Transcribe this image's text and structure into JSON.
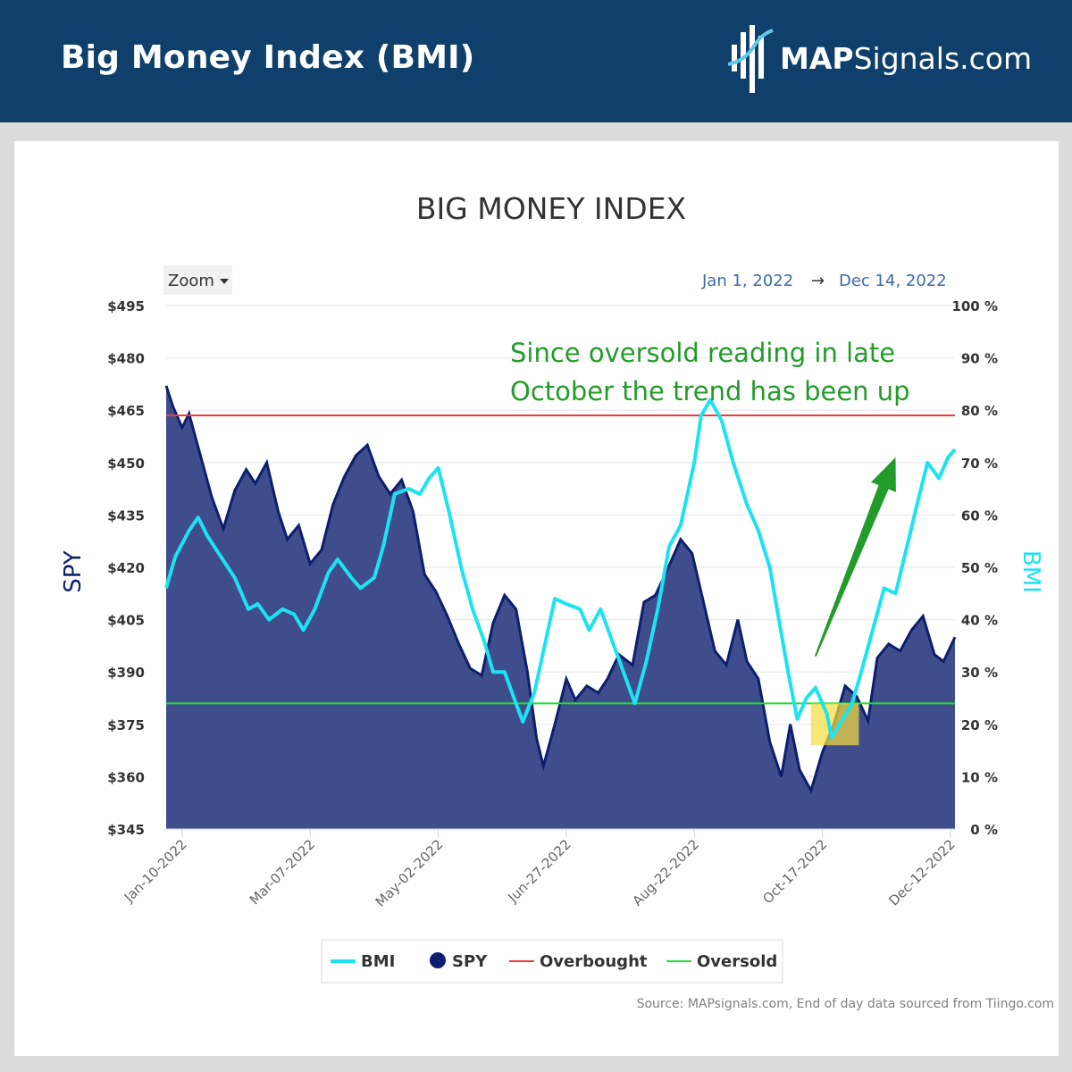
{
  "header": {
    "title": "Big Money Index (BMI)",
    "logo_text_bold": "MAP",
    "logo_text_rest": "Signals.com"
  },
  "chart_controls": {
    "zoom_label": "Zoom",
    "range_from": "Jan 1, 2022",
    "range_arrow": "→",
    "range_to": "Dec 14, 2022"
  },
  "source_note": "Source: MAPsignals.com, End of day data sourced from Tiingo.com",
  "colors": {
    "header_bg": "#0f3f6b",
    "bmi": "#1de3f0",
    "spy_fill": "#3f4d8d",
    "spy_line": "#0c1f6e",
    "overbought": "#e83b3b",
    "oversold": "#22dd33",
    "annotation": "#239b2a",
    "highlight": "#f5dd3c"
  },
  "chart_data": {
    "type": "line",
    "title": "BIG MONEY INDEX",
    "y_left_label": "SPY",
    "y_right_label": "BMI",
    "y_left_range": [
      345,
      495
    ],
    "y_left_ticks": [
      "$495",
      "$480",
      "$465",
      "$450",
      "$435",
      "$420",
      "$405",
      "$390",
      "$375",
      "$360",
      "$345"
    ],
    "y_right_range": [
      0,
      100
    ],
    "y_right_ticks": [
      "100 %",
      "90 %",
      "80 %",
      "70 %",
      "60 %",
      "50 %",
      "40 %",
      "30 %",
      "20 %",
      "10 %",
      "0 %"
    ],
    "x_ticks": [
      "Jan-10-2022",
      "Mar-07-2022",
      "May-02-2022",
      "Jun-27-2022",
      "Aug-22-2022",
      "Oct-17-2022",
      "Dec-12-2022"
    ],
    "x_range": [
      "2022-01-03",
      "2022-12-14"
    ],
    "legend": [
      {
        "name": "BMI",
        "symbol": "line"
      },
      {
        "name": "SPY",
        "symbol": "dot"
      },
      {
        "name": "Overbought",
        "symbol": "line"
      },
      {
        "name": "Oversold",
        "symbol": "line"
      }
    ],
    "legend_position": "bottom-center",
    "overbought_level": 79,
    "oversold_level": 24,
    "annotation": {
      "lines": [
        "Since oversold reading in late",
        "October the trend has been up"
      ],
      "arrow_from": [
        "2022-10-14",
        33
      ],
      "arrow_to": [
        "2022-11-18",
        71
      ]
    },
    "highlight_box": {
      "x": [
        "2022-10-12",
        "2022-11-02"
      ],
      "y": [
        16,
        24
      ]
    },
    "series": [
      {
        "name": "BMI",
        "axis": "right",
        "points": [
          [
            "2022-01-03",
            46
          ],
          [
            "2022-01-07",
            52
          ],
          [
            "2022-01-13",
            57
          ],
          [
            "2022-01-17",
            59.5
          ],
          [
            "2022-01-21",
            56
          ],
          [
            "2022-01-27",
            52
          ],
          [
            "2022-02-02",
            48
          ],
          [
            "2022-02-08",
            42
          ],
          [
            "2022-02-12",
            43
          ],
          [
            "2022-02-17",
            40
          ],
          [
            "2022-02-23",
            42
          ],
          [
            "2022-02-28",
            41
          ],
          [
            "2022-03-04",
            38
          ],
          [
            "2022-03-09",
            42
          ],
          [
            "2022-03-15",
            49
          ],
          [
            "2022-03-19",
            51.5
          ],
          [
            "2022-03-25",
            48
          ],
          [
            "2022-03-29",
            46
          ],
          [
            "2022-04-04",
            48
          ],
          [
            "2022-04-08",
            54
          ],
          [
            "2022-04-13",
            64
          ],
          [
            "2022-04-19",
            65
          ],
          [
            "2022-04-24",
            64
          ],
          [
            "2022-04-28",
            67
          ],
          [
            "2022-05-02",
            69
          ],
          [
            "2022-05-07",
            60
          ],
          [
            "2022-05-12",
            50
          ],
          [
            "2022-05-17",
            42
          ],
          [
            "2022-05-22",
            36
          ],
          [
            "2022-05-26",
            30
          ],
          [
            "2022-05-31",
            30
          ],
          [
            "2022-06-05",
            24
          ],
          [
            "2022-06-08",
            20.5
          ],
          [
            "2022-06-13",
            26
          ],
          [
            "2022-06-18",
            36
          ],
          [
            "2022-06-22",
            44
          ],
          [
            "2022-06-27",
            43
          ],
          [
            "2022-07-03",
            42
          ],
          [
            "2022-07-07",
            38
          ],
          [
            "2022-07-12",
            42
          ],
          [
            "2022-07-17",
            36
          ],
          [
            "2022-07-22",
            30
          ],
          [
            "2022-07-27",
            24
          ],
          [
            "2022-08-01",
            32
          ],
          [
            "2022-08-06",
            42
          ],
          [
            "2022-08-11",
            54
          ],
          [
            "2022-08-16",
            58
          ],
          [
            "2022-08-22",
            70
          ],
          [
            "2022-08-25",
            79
          ],
          [
            "2022-08-29",
            82
          ],
          [
            "2022-09-03",
            78
          ],
          [
            "2022-09-08",
            70
          ],
          [
            "2022-09-14",
            62
          ],
          [
            "2022-09-19",
            57
          ],
          [
            "2022-09-24",
            50
          ],
          [
            "2022-09-28",
            40
          ],
          [
            "2022-10-02",
            30
          ],
          [
            "2022-10-06",
            21
          ],
          [
            "2022-10-10",
            25
          ],
          [
            "2022-10-14",
            27
          ],
          [
            "2022-10-19",
            22
          ],
          [
            "2022-10-21",
            17.5
          ],
          [
            "2022-10-26",
            21
          ],
          [
            "2022-10-30",
            24
          ],
          [
            "2022-11-03",
            30
          ],
          [
            "2022-11-08",
            38
          ],
          [
            "2022-11-13",
            46
          ],
          [
            "2022-11-18",
            45
          ],
          [
            "2022-11-23",
            54
          ],
          [
            "2022-11-28",
            63
          ],
          [
            "2022-12-02",
            70
          ],
          [
            "2022-12-07",
            67
          ],
          [
            "2022-12-11",
            71
          ],
          [
            "2022-12-14",
            72.5
          ]
        ]
      },
      {
        "name": "SPY",
        "axis": "left",
        "points": [
          [
            "2022-01-03",
            472
          ],
          [
            "2022-01-06",
            466
          ],
          [
            "2022-01-10",
            460
          ],
          [
            "2022-01-13",
            464
          ],
          [
            "2022-01-18",
            452
          ],
          [
            "2022-01-23",
            440
          ],
          [
            "2022-01-28",
            431
          ],
          [
            "2022-02-02",
            442
          ],
          [
            "2022-02-07",
            448
          ],
          [
            "2022-02-11",
            444
          ],
          [
            "2022-02-16",
            450
          ],
          [
            "2022-02-21",
            436
          ],
          [
            "2022-02-25",
            428
          ],
          [
            "2022-03-02",
            432
          ],
          [
            "2022-03-07",
            421
          ],
          [
            "2022-03-12",
            425
          ],
          [
            "2022-03-17",
            438
          ],
          [
            "2022-03-22",
            446
          ],
          [
            "2022-03-27",
            452
          ],
          [
            "2022-04-01",
            455
          ],
          [
            "2022-04-06",
            446
          ],
          [
            "2022-04-11",
            441
          ],
          [
            "2022-04-16",
            445
          ],
          [
            "2022-04-21",
            436
          ],
          [
            "2022-04-26",
            418
          ],
          [
            "2022-05-01",
            413
          ],
          [
            "2022-05-06",
            406
          ],
          [
            "2022-05-11",
            398
          ],
          [
            "2022-05-16",
            391
          ],
          [
            "2022-05-21",
            389
          ],
          [
            "2022-05-26",
            404
          ],
          [
            "2022-05-31",
            412
          ],
          [
            "2022-06-05",
            408
          ],
          [
            "2022-06-10",
            390
          ],
          [
            "2022-06-14",
            371
          ],
          [
            "2022-06-17",
            363
          ],
          [
            "2022-06-22",
            375
          ],
          [
            "2022-06-27",
            388
          ],
          [
            "2022-07-01",
            382
          ],
          [
            "2022-07-06",
            386
          ],
          [
            "2022-07-11",
            384
          ],
          [
            "2022-07-15",
            388
          ],
          [
            "2022-07-20",
            395
          ],
          [
            "2022-07-26",
            392
          ],
          [
            "2022-07-31",
            410
          ],
          [
            "2022-08-05",
            412
          ],
          [
            "2022-08-10",
            419
          ],
          [
            "2022-08-16",
            428
          ],
          [
            "2022-08-21",
            424
          ],
          [
            "2022-08-26",
            410
          ],
          [
            "2022-08-31",
            396
          ],
          [
            "2022-09-05",
            392
          ],
          [
            "2022-09-10",
            405
          ],
          [
            "2022-09-14",
            393
          ],
          [
            "2022-09-19",
            388
          ],
          [
            "2022-09-24",
            370
          ],
          [
            "2022-09-29",
            360
          ],
          [
            "2022-10-03",
            375
          ],
          [
            "2022-10-07",
            362
          ],
          [
            "2022-10-12",
            356
          ],
          [
            "2022-10-17",
            367
          ],
          [
            "2022-10-22",
            375
          ],
          [
            "2022-10-27",
            386
          ],
          [
            "2022-11-01",
            383
          ],
          [
            "2022-11-06",
            376
          ],
          [
            "2022-11-10",
            394
          ],
          [
            "2022-11-15",
            398
          ],
          [
            "2022-11-20",
            396
          ],
          [
            "2022-11-25",
            402
          ],
          [
            "2022-11-30",
            406
          ],
          [
            "2022-12-05",
            395
          ],
          [
            "2022-12-09",
            393
          ],
          [
            "2022-12-14",
            400
          ]
        ]
      }
    ]
  }
}
